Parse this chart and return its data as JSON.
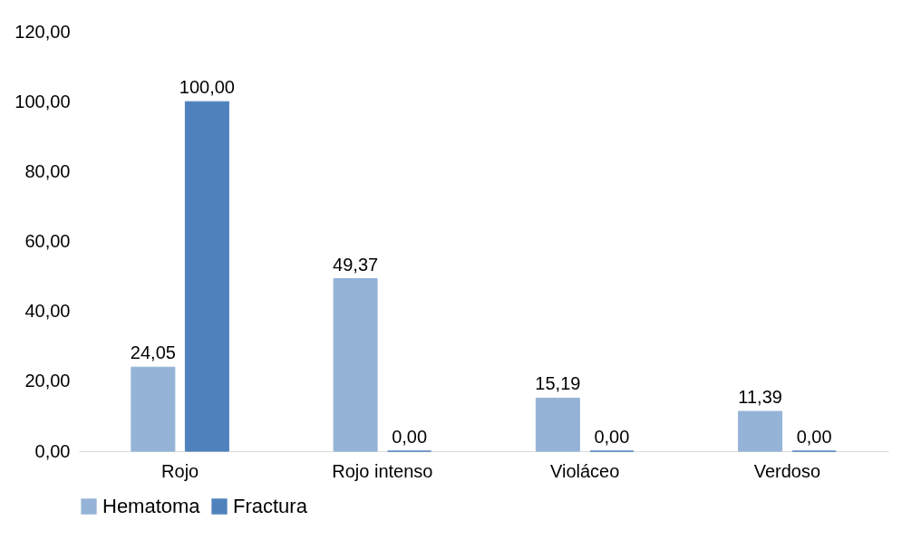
{
  "chart_data": {
    "type": "bar",
    "categories": [
      "Rojo",
      "Rojo intenso",
      "Violáceo",
      "Verdoso"
    ],
    "series": [
      {
        "name": "Hematoma",
        "color": "#95b3d7",
        "values": [
          24.05,
          49.37,
          15.19,
          11.39
        ],
        "value_labels": [
          "24,05",
          "49,37",
          "15,19",
          "11,39"
        ]
      },
      {
        "name": "Fractura",
        "color": "#4f81bd",
        "values": [
          100.0,
          0.0,
          0.0,
          0.0
        ],
        "value_labels": [
          "100,00",
          "0,00",
          "0,00",
          "0,00"
        ]
      }
    ],
    "ylim": [
      0,
      120
    ],
    "yticks": [
      {
        "value": 0,
        "label": "0,00"
      },
      {
        "value": 20,
        "label": "20,00"
      },
      {
        "value": 40,
        "label": "40,00"
      },
      {
        "value": 60,
        "label": "60,00"
      },
      {
        "value": 80,
        "label": "80,00"
      },
      {
        "value": 100,
        "label": "100,00"
      },
      {
        "value": 120,
        "label": "120,00"
      }
    ],
    "grid": false,
    "legend": "bottom"
  }
}
